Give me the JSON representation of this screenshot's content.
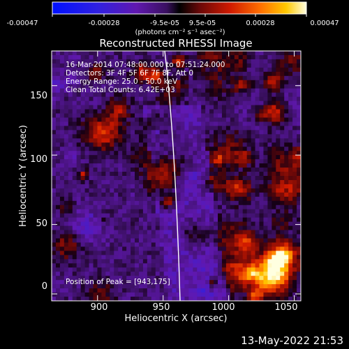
{
  "chart_data": {
    "type": "heatmap",
    "title": "Reconstructed RHESSI Image",
    "xlabel": "Heliocentric X (arcsec)",
    "ylabel": "Heliocentric Y (arcsec)",
    "xlim": [
      865,
      1055
    ],
    "ylim": [
      -5,
      175
    ],
    "xticks": [
      900,
      950,
      1000,
      1050
    ],
    "yticks": [
      0,
      50,
      100,
      150
    ],
    "colorbar": {
      "ticks": [
        "-0.00047",
        "-0.00028",
        "-9.5e-05",
        "9.5e-05",
        "0.00028",
        "0.00047"
      ],
      "unit_label": "(photons cm⁻² s⁻¹ asec⁻²)",
      "range": [
        -0.00047,
        0.00047
      ]
    },
    "annotations": [
      "16-Mar-2014 07:48:00.000 to 07:51:24.000",
      "Detectors: 3F 4F 5F 6F 7F 8F, Att 0",
      "Energy Range: 25.0 - 50.0 keV",
      "Clean    Total Counts: 6.42E+03",
      "Position of Peak = [943,175]"
    ],
    "peak": [
      943,
      175
    ],
    "grid": false
  },
  "footer": {
    "date": "13-May-2022 21:53"
  }
}
